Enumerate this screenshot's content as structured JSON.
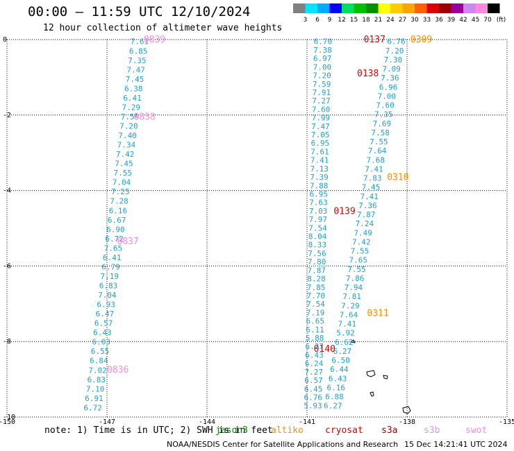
{
  "header": {
    "title": "00:00 – 11:59 UTC 12/10/2024",
    "subtitle": "12 hour collection of altimeter wave heights"
  },
  "colorbar": {
    "labels": [
      "3",
      "6",
      "9",
      "12",
      "15",
      "18",
      "21",
      "24",
      "27",
      "30",
      "33",
      "36",
      "39",
      "42",
      "45",
      "70"
    ],
    "unit": "(ft)",
    "colors": [
      "#808080",
      "#00e5ff",
      "#00aaff",
      "#0000ff",
      "#00e060",
      "#00c000",
      "#009000",
      "#ffff00",
      "#ffcc00",
      "#ffa500",
      "#ff6000",
      "#dd0000",
      "#a00000",
      "#990099",
      "#cc88ee",
      "#ff88dd",
      "#000000"
    ]
  },
  "footer": {
    "note": "note: 1) Time is in UTC; 2) SWH is in feet",
    "satellites": [
      {
        "name": "jason3",
        "color": "#009000"
      },
      {
        "name": "altiko",
        "color": "#ff8c00"
      },
      {
        "name": "cryosat",
        "color": "#dd0000"
      },
      {
        "name": "s3a",
        "color": "#990000"
      },
      {
        "name": "s3b",
        "color": "#cc99ee"
      },
      {
        "name": "swot",
        "color": "#ff88dd"
      }
    ],
    "credit": "NOAA/NESDIS Center for Satellite Applications and Research",
    "timestamp": "15 Dec 14:21:41 UTC 2024"
  },
  "chart_data": {
    "type": "scatter",
    "xlim": [
      -150,
      -135
    ],
    "ylim": [
      -10,
      0
    ],
    "x_ticks": [
      "-150",
      "-147",
      "-144",
      "-141",
      "-138",
      "-135"
    ],
    "y_ticks": [
      "0",
      "-2",
      "-4",
      "-6",
      "-8",
      "-10"
    ],
    "grid": true,
    "value_color": "#1e9fd2",
    "tracks": [
      {
        "x0": -146.3,
        "y0": -0.05,
        "x1": -147.7,
        "y1": -9.75,
        "values": [
          "7.61",
          "6.85",
          "7.35",
          "7.47",
          "7.45",
          "6.38",
          "6.41",
          "7.29",
          "7.59",
          "7.20",
          "7.40",
          "7.34",
          "7.42",
          "7.45",
          "7.55",
          "7.04",
          "7.25",
          "7.28",
          "6.16",
          "6.67",
          "6.90",
          "6.72",
          "7.65",
          "6.41",
          "6.79",
          "7.19",
          "6.83",
          "7.04",
          "6.93",
          "6.47",
          "6.57",
          "6.43",
          "6.03",
          "6.55",
          "6.84",
          "7.02",
          "6.83",
          "7.10",
          "6.91",
          "6.72"
        ]
      },
      {
        "x0": -140.8,
        "y0": -0.05,
        "x1": -141.1,
        "y1": -9.7,
        "values": [
          "6.70",
          "7.38",
          "6.97",
          "7.00",
          "7.20",
          "7.59",
          "7.91",
          "7.27",
          "7.60",
          "7.99",
          "7.47",
          "7.05",
          "6.95",
          "7.61",
          "7.41",
          "7.13",
          "7.39",
          "7.88",
          "6.95",
          "7.63",
          "7.03",
          "7.97",
          "7.54",
          "8.04",
          "8.33",
          "7.56",
          "7.80",
          "7.87",
          "8.28",
          "7.85",
          "7.70",
          "7.54",
          "7.19",
          "6.65",
          "6.11",
          "5.88",
          "6.27",
          "6.43",
          "6.24",
          "7.27",
          "6.57",
          "6.45",
          "6.76",
          "5.93"
        ]
      },
      {
        "x0": -138.6,
        "y0": -0.05,
        "x1": -140.5,
        "y1": -9.7,
        "values": [
          "6.76",
          "7.20",
          "7.30",
          "7.09",
          "7.36",
          "6.96",
          "7.00",
          "7.60",
          "7.35",
          "7.69",
          "7.58",
          "7.55",
          "7.64",
          "7.68",
          "7.41",
          "7.83",
          "7.45",
          "7.41",
          "7.36",
          "7.87",
          "7.24",
          "7.49",
          "7.42",
          "7.55",
          "7.65",
          "7.55",
          "7.86",
          "7.94",
          "7.81",
          "7.29",
          "7.64",
          "7.41",
          "5.92",
          "6.62",
          "6.27",
          "6.50",
          "6.44",
          "6.43",
          "6.16",
          "6.88",
          "6.27"
        ]
      }
    ],
    "pass_labels": [
      {
        "text": "0839",
        "x": -145.9,
        "y": 0.0,
        "color": "#ff88dd"
      },
      {
        "text": "0838",
        "x": -146.2,
        "y": -2.05,
        "color": "#ff88dd"
      },
      {
        "text": "0837",
        "x": -146.7,
        "y": -5.35,
        "color": "#ff88dd"
      },
      {
        "text": "0836",
        "x": -147.0,
        "y": -8.75,
        "color": "#ff88dd"
      },
      {
        "text": "0137",
        "x": -139.3,
        "y": 0.0,
        "color": "#dd0000"
      },
      {
        "text": "0138",
        "x": -139.5,
        "y": -0.9,
        "color": "#dd0000"
      },
      {
        "text": "0139",
        "x": -140.2,
        "y": -4.55,
        "color": "#dd0000"
      },
      {
        "text": "0140",
        "x": -140.8,
        "y": -8.2,
        "color": "#dd0000"
      },
      {
        "text": "0309",
        "x": -137.9,
        "y": 0.0,
        "color": "#ff8c00"
      },
      {
        "text": "0310",
        "x": -138.6,
        "y": -3.65,
        "color": "#ff8c00"
      },
      {
        "text": "0311",
        "x": -139.2,
        "y": -7.25,
        "color": "#ff8c00"
      }
    ]
  }
}
